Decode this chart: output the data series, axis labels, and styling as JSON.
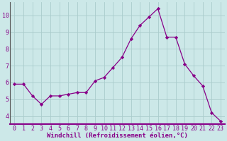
{
  "x": [
    0,
    1,
    2,
    3,
    4,
    5,
    6,
    7,
    8,
    9,
    10,
    11,
    12,
    13,
    14,
    15,
    16,
    17,
    18,
    19,
    20,
    21,
    22,
    23
  ],
  "y": [
    5.9,
    5.9,
    5.2,
    4.7,
    5.2,
    5.2,
    5.3,
    5.4,
    5.4,
    6.1,
    6.3,
    6.9,
    7.5,
    8.6,
    9.4,
    9.9,
    10.4,
    8.7,
    8.7,
    7.1,
    6.4,
    5.8,
    4.2,
    3.7
  ],
  "line_color": "#880088",
  "marker": "D",
  "marker_size": 2.2,
  "line_width": 0.9,
  "bg_color": "#cce8e8",
  "grid_color": "#aacccc",
  "xlabel": "Windchill (Refroidissement éolien,°C)",
  "xlabel_fontsize": 6.5,
  "tick_fontsize": 6.0,
  "ylim": [
    3.5,
    10.8
  ],
  "yticks": [
    4,
    5,
    6,
    7,
    8,
    9,
    10
  ],
  "xlim": [
    -0.5,
    23.5
  ],
  "axis_color": "#880088",
  "spine_color": "#555555"
}
